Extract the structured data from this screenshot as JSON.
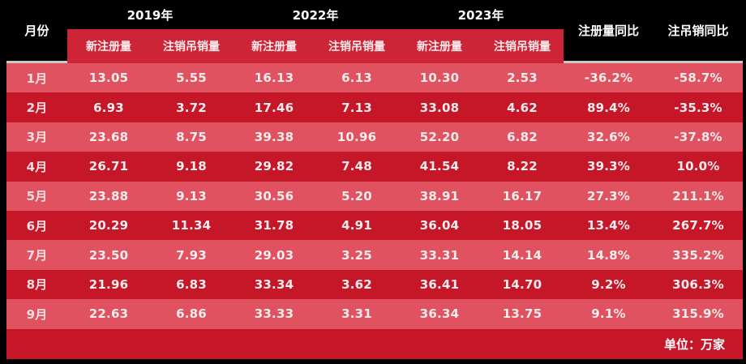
{
  "colors": {
    "header-bg": "#000000",
    "subheader-bg": "#ce2438",
    "row-light": "#e15260",
    "row-dark": "#c61729",
    "footer-bg": "#c61729",
    "divider": "#c9c9c9",
    "text": "#ffffff"
  },
  "chart_data": {
    "type": "table",
    "unit_note": "单位：万家",
    "header": {
      "month": "月份",
      "groups": [
        {
          "year": "2019年",
          "subs": [
            "新注册量",
            "注销吊销量"
          ]
        },
        {
          "year": "2022年",
          "subs": [
            "新注册量",
            "注销吊销量"
          ]
        },
        {
          "year": "2023年",
          "subs": [
            "新注册量",
            "注销吊销量"
          ]
        }
      ],
      "yoy": [
        "注册量同比",
        "注吊销同比"
      ]
    },
    "rows": [
      {
        "month": "1月",
        "values": [
          "13.05",
          "5.55",
          "16.13",
          "6.13",
          "10.30",
          "2.53",
          "-36.2%",
          "-58.7%"
        ]
      },
      {
        "month": "2月",
        "values": [
          "6.93",
          "3.72",
          "17.46",
          "7.13",
          "33.08",
          "4.62",
          "89.4%",
          "-35.3%"
        ]
      },
      {
        "month": "3月",
        "values": [
          "23.68",
          "8.75",
          "39.38",
          "10.96",
          "52.20",
          "6.82",
          "32.6%",
          "-37.8%"
        ]
      },
      {
        "month": "4月",
        "values": [
          "26.71",
          "9.18",
          "29.82",
          "7.48",
          "41.54",
          "8.22",
          "39.3%",
          "10.0%"
        ]
      },
      {
        "month": "5月",
        "values": [
          "23.88",
          "9.13",
          "30.56",
          "5.20",
          "38.91",
          "16.17",
          "27.3%",
          "211.1%"
        ]
      },
      {
        "month": "6月",
        "values": [
          "20.29",
          "11.34",
          "31.78",
          "4.91",
          "36.04",
          "18.05",
          "13.4%",
          "267.7%"
        ]
      },
      {
        "month": "7月",
        "values": [
          "23.50",
          "7.93",
          "29.03",
          "3.25",
          "33.31",
          "14.14",
          "14.8%",
          "335.2%"
        ]
      },
      {
        "month": "8月",
        "values": [
          "21.96",
          "6.83",
          "33.34",
          "3.62",
          "36.41",
          "14.70",
          "9.2%",
          "306.3%"
        ]
      },
      {
        "month": "9月",
        "values": [
          "22.63",
          "6.86",
          "33.33",
          "3.31",
          "36.34",
          "13.75",
          "9.1%",
          "315.9%"
        ]
      }
    ]
  }
}
